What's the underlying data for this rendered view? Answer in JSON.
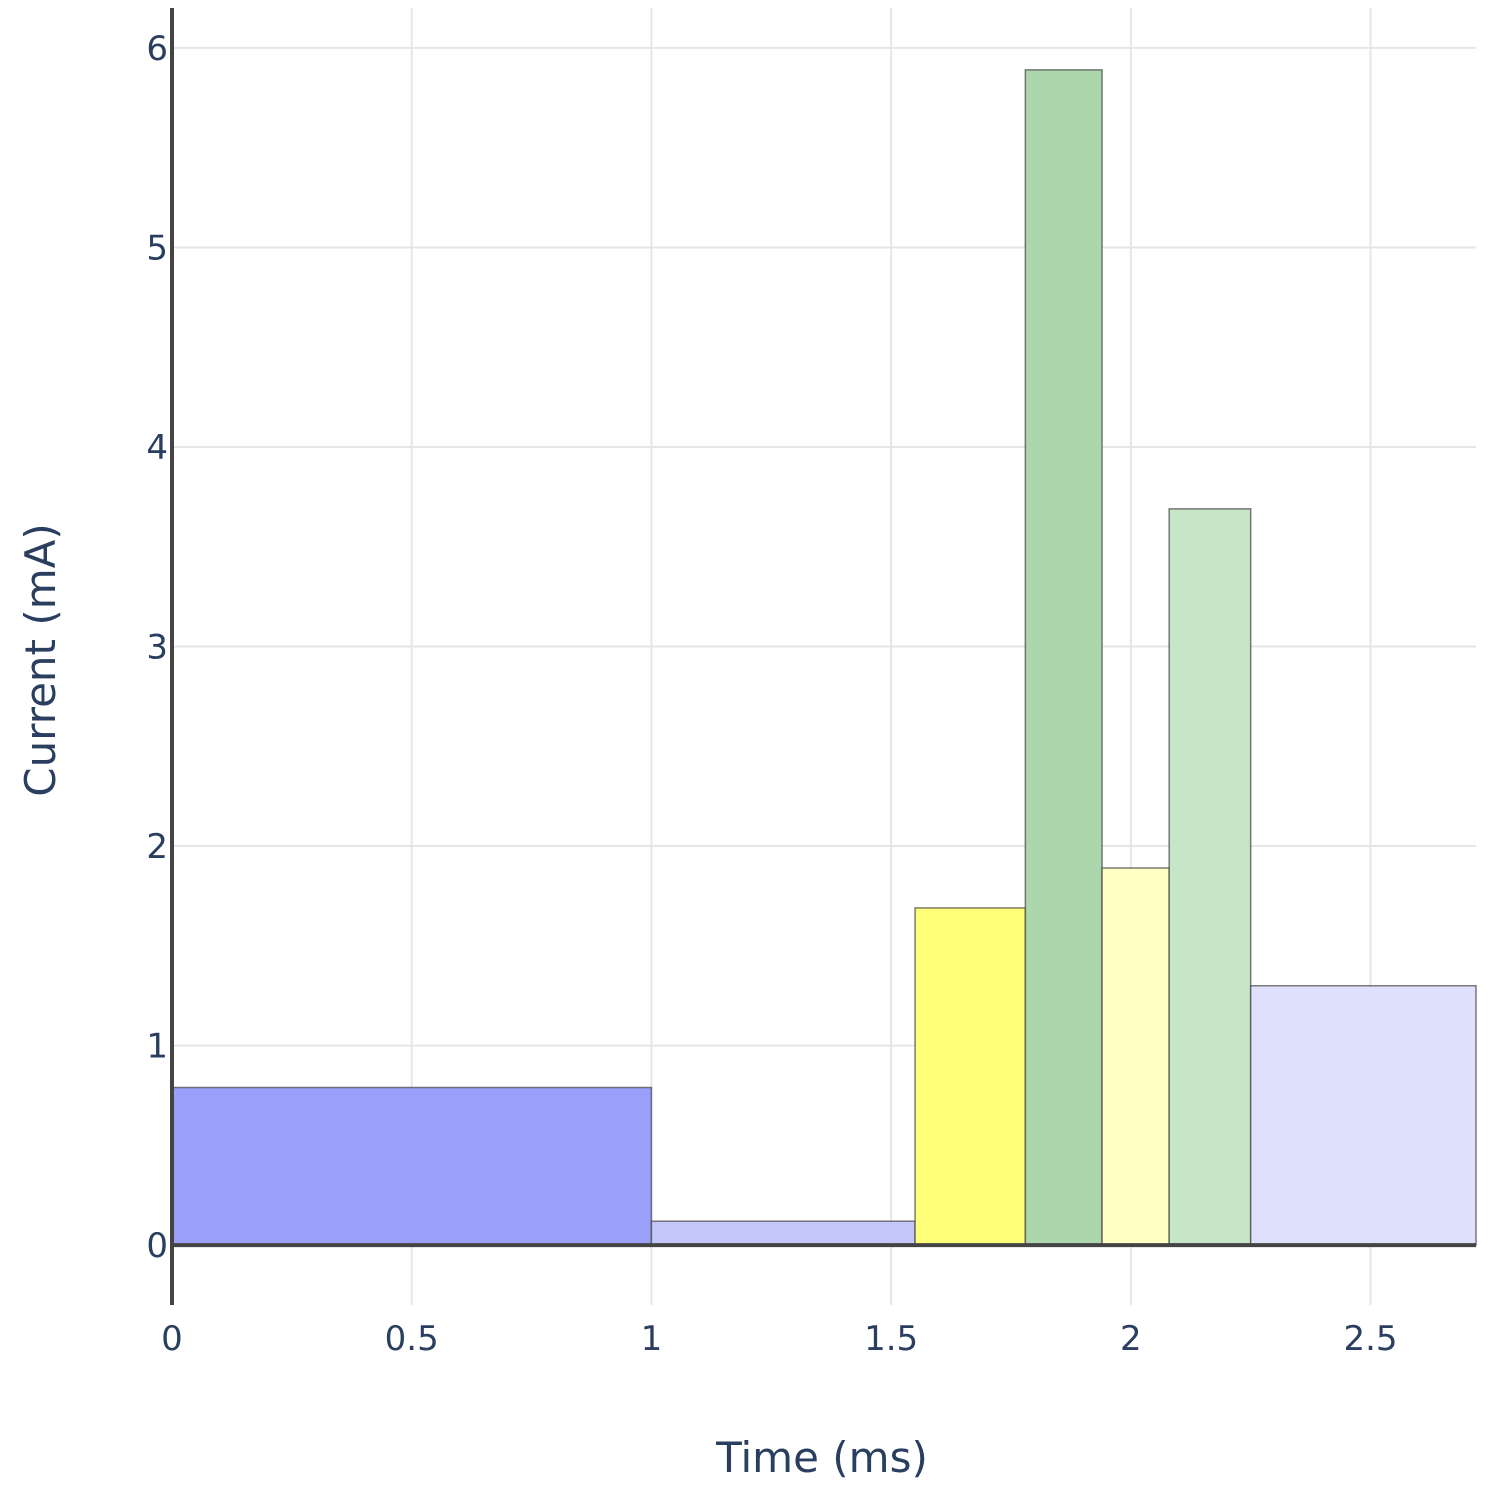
{
  "chart_data": {
    "type": "bar",
    "xlabel": "Time (ms)",
    "ylabel": "Current (mA)",
    "xlim": [
      0,
      2.72
    ],
    "ylim": [
      -0.3,
      6.2
    ],
    "grid": true,
    "x_ticks": [
      0,
      0.5,
      1,
      1.5,
      2,
      2.5
    ],
    "x_tick_labels": [
      "0",
      "0.5",
      "1",
      "1.5",
      "2",
      "2.5"
    ],
    "y_ticks": [
      0,
      1,
      2,
      3,
      4,
      5,
      6
    ],
    "y_tick_labels": [
      "0",
      "1",
      "2",
      "3",
      "4",
      "5",
      "6"
    ],
    "segments": [
      {
        "x_start": 0.0,
        "x_end": 1.0,
        "value": 0.79,
        "color": "#9aa0fa"
      },
      {
        "x_start": 1.0,
        "x_end": 1.55,
        "value": 0.12,
        "color": "#c3c7fb"
      },
      {
        "x_start": 1.55,
        "x_end": 1.78,
        "value": 1.69,
        "color": "#ffff78"
      },
      {
        "x_start": 1.78,
        "x_end": 1.94,
        "value": 5.89,
        "color": "#acd6ac"
      },
      {
        "x_start": 1.94,
        "x_end": 2.08,
        "value": 1.89,
        "color": "#ffffc6"
      },
      {
        "x_start": 2.08,
        "x_end": 2.25,
        "value": 3.69,
        "color": "#c7e5c7"
      },
      {
        "x_start": 2.25,
        "x_end": 2.72,
        "value": 1.3,
        "color": "#dfe0fc"
      }
    ]
  }
}
